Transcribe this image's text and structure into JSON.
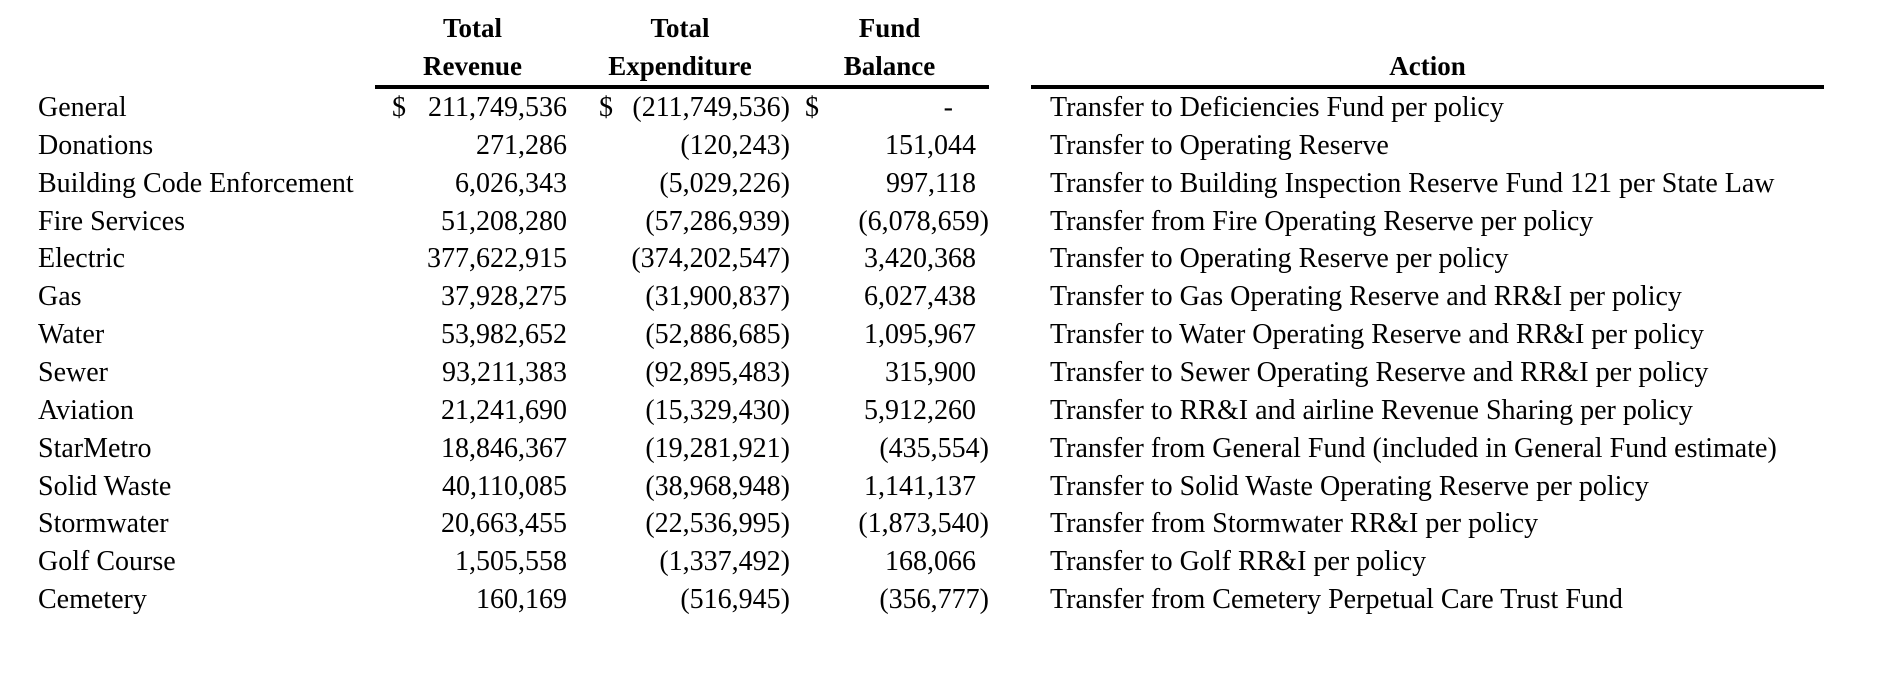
{
  "table": {
    "headers": {
      "revenue": [
        "Total",
        "Revenue"
      ],
      "expenditure": [
        "Total",
        "Expenditure"
      ],
      "balance": [
        "Fund",
        "Balance"
      ],
      "action": "Action"
    },
    "rows": [
      {
        "fund": "General",
        "revenue_prefix": "$",
        "revenue": "211,749,536",
        "expenditure_prefix": "$",
        "expenditure": "(211,749,536)",
        "balance_prefix": "$",
        "balance": "-",
        "action": "Transfer to Deficiencies Fund per policy"
      },
      {
        "fund": "Donations",
        "revenue": "271,286",
        "expenditure": "(120,243)",
        "balance": "151,044",
        "action": "Transfer to Operating Reserve"
      },
      {
        "fund": "Building Code Enforcement",
        "revenue": "6,026,343",
        "expenditure": "(5,029,226)",
        "balance": "997,118",
        "action": "Transfer to Building Inspection Reserve Fund 121 per State Law"
      },
      {
        "fund": "Fire Services",
        "revenue": "51,208,280",
        "expenditure": "(57,286,939)",
        "balance": "(6,078,659)",
        "action": "Transfer from Fire Operating Reserve per policy"
      },
      {
        "fund": "Electric",
        "revenue": "377,622,915",
        "expenditure": "(374,202,547)",
        "balance": "3,420,368",
        "action": "Transfer to Operating Reserve per policy"
      },
      {
        "fund": "Gas",
        "revenue": "37,928,275",
        "expenditure": "(31,900,837)",
        "balance": "6,027,438",
        "action": "Transfer to Gas Operating Reserve and RR&I per policy"
      },
      {
        "fund": "Water",
        "revenue": "53,982,652",
        "expenditure": "(52,886,685)",
        "balance": "1,095,967",
        "action": "Transfer to Water Operating Reserve and RR&I per policy"
      },
      {
        "fund": "Sewer",
        "revenue": "93,211,383",
        "expenditure": "(92,895,483)",
        "balance": "315,900",
        "action": "Transfer to Sewer Operating Reserve and RR&I per policy"
      },
      {
        "fund": "Aviation",
        "revenue": "21,241,690",
        "expenditure": "(15,329,430)",
        "balance": "5,912,260",
        "action": "Transfer to RR&I and airline Revenue Sharing per policy"
      },
      {
        "fund": "StarMetro",
        "revenue": "18,846,367",
        "expenditure": "(19,281,921)",
        "balance": "(435,554)",
        "action": "Transfer from General Fund (included in General Fund estimate)"
      },
      {
        "fund": "Solid Waste",
        "revenue": "40,110,085",
        "expenditure": "(38,968,948)",
        "balance": "1,141,137",
        "action": "Transfer to Solid Waste Operating Reserve per policy"
      },
      {
        "fund": "Stormwater",
        "revenue": "20,663,455",
        "expenditure": "(22,536,995)",
        "balance": "(1,873,540)",
        "action": "Transfer from Stormwater RR&I per policy"
      },
      {
        "fund": "Golf Course",
        "revenue": "1,505,558",
        "expenditure": "(1,337,492)",
        "balance": "168,066",
        "action": "Transfer to Golf RR&I per policy"
      },
      {
        "fund": "Cemetery",
        "revenue": "160,169",
        "expenditure": "(516,945)",
        "balance": "(356,777)",
        "action": "Transfer from Cemetery Perpetual Care Trust Fund"
      }
    ]
  },
  "colors": {
    "text": "#000000",
    "background": "#ffffff",
    "rule": "#000000"
  }
}
